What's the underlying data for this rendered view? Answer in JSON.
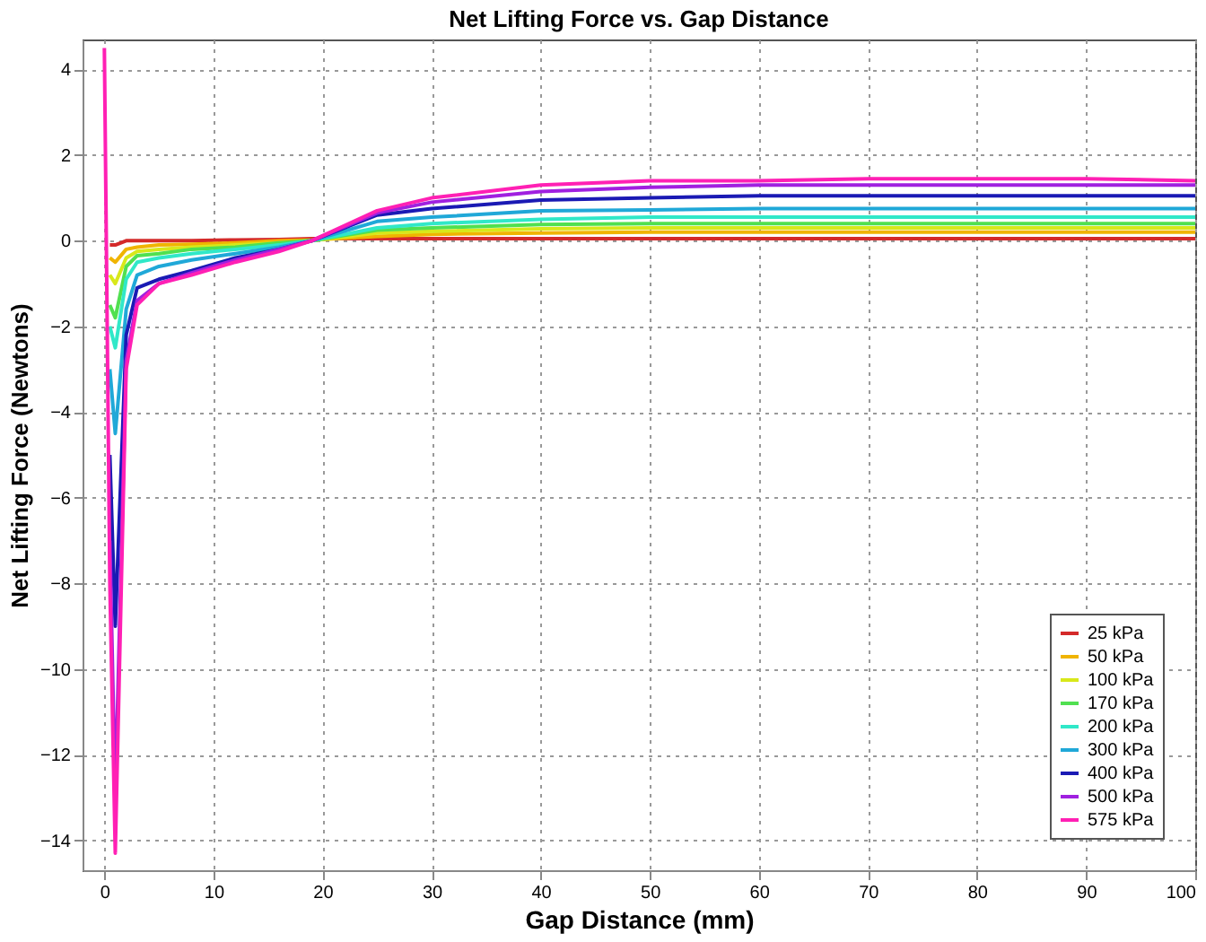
{
  "chart_data": {
    "type": "line",
    "title": "Net Lifting Force vs. Gap Distance",
    "xlabel": "Gap Distance (mm)",
    "ylabel": "Net Lifting Force (Newtons)",
    "x": [
      0,
      0.5,
      1,
      2,
      3,
      5,
      8,
      12,
      16,
      19,
      25,
      30,
      40,
      50,
      60,
      70,
      80,
      90,
      100
    ],
    "series": [
      {
        "name": "25 kPa",
        "color": "#d42a2a",
        "values": [
          null,
          -0.1,
          -0.1,
          0,
          0,
          0,
          0,
          0.02,
          0.03,
          0.05,
          0.05,
          0.05,
          0.05,
          0.05,
          0.05,
          0.05,
          0.05,
          0.05,
          0.05
        ]
      },
      {
        "name": "50 kPa",
        "color": "#f0b400",
        "values": [
          null,
          -0.4,
          -0.5,
          -0.2,
          -0.15,
          -0.1,
          -0.08,
          -0.05,
          0,
          0.02,
          0.1,
          0.15,
          0.18,
          0.2,
          0.2,
          0.2,
          0.2,
          0.2,
          0.2
        ]
      },
      {
        "name": "100 kPa",
        "color": "#d8e81a",
        "values": [
          null,
          -0.8,
          -1,
          -0.4,
          -0.25,
          -0.2,
          -0.15,
          -0.1,
          -0.05,
          0,
          0.18,
          0.22,
          0.28,
          0.3,
          0.3,
          0.3,
          0.3,
          0.3,
          0.3
        ]
      },
      {
        "name": "170 kPa",
        "color": "#50e050",
        "values": [
          null,
          -1.5,
          -1.8,
          -0.6,
          -0.35,
          -0.3,
          -0.2,
          -0.15,
          -0.05,
          0,
          0.25,
          0.3,
          0.38,
          0.4,
          0.4,
          0.4,
          0.4,
          0.4,
          0.4
        ]
      },
      {
        "name": "200 kPa",
        "color": "#30e8c8",
        "values": [
          null,
          -2,
          -2.5,
          -0.9,
          -0.5,
          -0.4,
          -0.3,
          -0.2,
          -0.1,
          0,
          0.3,
          0.4,
          0.5,
          0.55,
          0.55,
          0.55,
          0.55,
          0.55,
          0.55
        ]
      },
      {
        "name": "300 kPa",
        "color": "#20a8d8",
        "values": [
          null,
          -3,
          -4.5,
          -1.6,
          -0.8,
          -0.6,
          -0.45,
          -0.3,
          -0.15,
          0,
          0.45,
          0.55,
          0.7,
          0.72,
          0.75,
          0.75,
          0.75,
          0.75,
          0.75
        ]
      },
      {
        "name": "400 kPa",
        "color": "#1a1ab4",
        "values": [
          null,
          -5,
          -9,
          -2.2,
          -1.1,
          -0.9,
          -0.7,
          -0.4,
          -0.2,
          0,
          0.6,
          0.75,
          0.95,
          1.0,
          1.05,
          1.05,
          1.05,
          1.05,
          1.05
        ]
      },
      {
        "name": "500 kPa",
        "color": "#a020e0",
        "values": [
          null,
          -7,
          -13,
          -2.8,
          -1.4,
          -1.0,
          -0.75,
          -0.45,
          -0.2,
          0,
          0.65,
          0.9,
          1.15,
          1.25,
          1.3,
          1.3,
          1.3,
          1.3,
          1.3
        ]
      },
      {
        "name": "575 kPa",
        "color": "#ff20b4",
        "values": [
          4.5,
          -8,
          -14.3,
          -3,
          -1.5,
          -1.0,
          -0.8,
          -0.5,
          -0.25,
          0,
          0.7,
          1.0,
          1.3,
          1.4,
          1.4,
          1.45,
          1.45,
          1.45,
          1.4
        ]
      }
    ],
    "xlim": [
      -2,
      100
    ],
    "xticks": [
      0,
      10,
      20,
      30,
      40,
      50,
      60,
      70,
      80,
      90,
      100
    ],
    "ylim": [
      -14.7,
      4.7
    ],
    "yticks": [
      -14,
      -12,
      -10,
      -8,
      -6,
      -4,
      -2,
      0,
      2,
      4
    ],
    "grid": true,
    "legend": "bottom right",
    "marker": "none",
    "line_style": "solid"
  }
}
